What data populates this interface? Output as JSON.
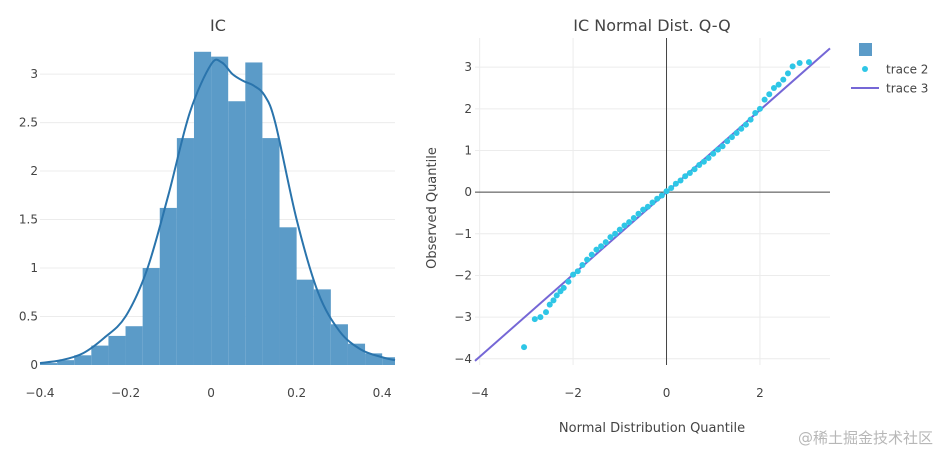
{
  "colors": {
    "hist_fill": "#5b9bc8",
    "kde_line": "#2a74ac",
    "qq_points": "#2ec6e6",
    "ref_line": "#7567d6",
    "zero_line": "#444444",
    "grid": "#ececec"
  },
  "watermark": "@稀土掘金技术社区",
  "chart_data": [
    {
      "type": "bar",
      "subtype": "histogram-with-density",
      "title": "IC",
      "xlabel": "",
      "ylabel": "",
      "xlim": [
        -0.4,
        0.43
      ],
      "ylim": [
        0,
        3.3
      ],
      "xticks": [
        "−0.4",
        "−0.2",
        "0",
        "0.2",
        "0.4"
      ],
      "xtick_values": [
        -0.4,
        -0.2,
        0,
        0.2,
        0.4
      ],
      "yticks": [
        "0",
        "0.5",
        "1",
        "1.5",
        "2",
        "2.5",
        "3"
      ],
      "ytick_values": [
        0,
        0.5,
        1,
        1.5,
        2,
        2.5,
        3
      ],
      "bin_width": 0.04,
      "bin_starts": [
        -0.4,
        -0.36,
        -0.32,
        -0.28,
        -0.24,
        -0.2,
        -0.16,
        -0.12,
        -0.08,
        -0.04,
        0.0,
        0.04,
        0.08,
        0.12,
        0.16,
        0.2,
        0.24,
        0.28,
        0.32,
        0.36,
        0.4
      ],
      "values": [
        0.02,
        0.05,
        0.1,
        0.2,
        0.3,
        0.4,
        1.0,
        1.62,
        2.34,
        3.23,
        3.18,
        2.72,
        3.12,
        2.34,
        1.42,
        0.88,
        0.78,
        0.42,
        0.22,
        0.12,
        0.08
      ],
      "density": {
        "x": [
          -0.4,
          -0.35,
          -0.3,
          -0.25,
          -0.2,
          -0.15,
          -0.1,
          -0.05,
          0.0,
          0.025,
          0.05,
          0.075,
          0.1,
          0.125,
          0.15,
          0.2,
          0.25,
          0.3,
          0.35,
          0.4,
          0.43
        ],
        "y": [
          0.02,
          0.05,
          0.12,
          0.28,
          0.5,
          0.98,
          1.75,
          2.6,
          3.1,
          3.12,
          3.0,
          2.93,
          2.88,
          2.78,
          2.5,
          1.5,
          0.75,
          0.35,
          0.16,
          0.08,
          0.05
        ]
      }
    },
    {
      "type": "scatter",
      "title": "IC Normal Dist. Q-Q",
      "xlabel": "Normal Distribution Quantile",
      "ylabel": "Observed Quantile",
      "xlim": [
        -4.1,
        3.5
      ],
      "ylim": [
        -4.15,
        3.7
      ],
      "xticks": [
        "−4",
        "−2",
        "0",
        "2"
      ],
      "xtick_values": [
        -4,
        -2,
        0,
        2
      ],
      "yticks": [
        "−4",
        "−3",
        "−2",
        "−1",
        "0",
        "1",
        "2",
        "3"
      ],
      "ytick_values": [
        -4,
        -3,
        -2,
        -1,
        0,
        1,
        2,
        3
      ],
      "legend_position": "top-right",
      "series": [
        {
          "name": "",
          "kind": "legend-square"
        },
        {
          "name": "trace 2",
          "kind": "markers",
          "x": [
            -3.05,
            -2.82,
            -2.7,
            -2.58,
            -2.5,
            -2.42,
            -2.35,
            -2.27,
            -2.2,
            -2.1,
            -2.0,
            -1.9,
            -1.8,
            -1.7,
            -1.6,
            -1.5,
            -1.4,
            -1.3,
            -1.2,
            -1.1,
            -1.0,
            -0.9,
            -0.8,
            -0.7,
            -0.6,
            -0.5,
            -0.4,
            -0.3,
            -0.2,
            -0.1,
            0.0,
            0.1,
            0.2,
            0.3,
            0.4,
            0.5,
            0.6,
            0.7,
            0.8,
            0.9,
            1.0,
            1.1,
            1.2,
            1.3,
            1.4,
            1.5,
            1.6,
            1.7,
            1.8,
            1.9,
            2.0,
            2.1,
            2.2,
            2.3,
            2.4,
            2.5,
            2.6,
            2.7,
            2.85,
            3.05
          ],
          "y": [
            -3.72,
            -3.05,
            -3.0,
            -2.88,
            -2.7,
            -2.6,
            -2.48,
            -2.38,
            -2.3,
            -2.15,
            -1.98,
            -1.9,
            -1.75,
            -1.62,
            -1.5,
            -1.38,
            -1.3,
            -1.2,
            -1.08,
            -1.0,
            -0.9,
            -0.8,
            -0.72,
            -0.62,
            -0.52,
            -0.42,
            -0.35,
            -0.25,
            -0.16,
            -0.08,
            0.02,
            0.1,
            0.2,
            0.28,
            0.38,
            0.46,
            0.55,
            0.65,
            0.73,
            0.82,
            0.92,
            1.02,
            1.1,
            1.22,
            1.32,
            1.42,
            1.52,
            1.62,
            1.74,
            1.9,
            2.0,
            2.22,
            2.35,
            2.5,
            2.58,
            2.7,
            2.85,
            3.02,
            3.1,
            3.12
          ]
        },
        {
          "name": "trace 3",
          "kind": "line",
          "x": [
            -4.1,
            3.5
          ],
          "y": [
            -4.05,
            3.45
          ]
        }
      ]
    }
  ]
}
